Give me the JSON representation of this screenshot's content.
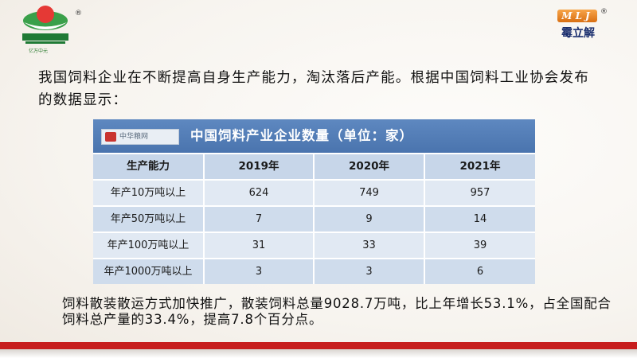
{
  "brand_left": {
    "caption": "亿万中元",
    "registered": "®"
  },
  "brand_right": {
    "badge": "MLJ",
    "registered": "®",
    "name": "霉立解"
  },
  "intro_text": "我国饲料企业在不断提高自身生产能力，淘汰落后产能。根据中国饲料工业协会发布的数据显示：",
  "table": {
    "source_logo": "中华粮网",
    "title": "中国饲料产业企业数量（单位：家）",
    "headers": [
      "生产能力",
      "2019年",
      "2020年",
      "2021年"
    ],
    "rows": [
      [
        "年产10万吨以上",
        "624",
        "749",
        "957"
      ],
      [
        "年产50万吨以上",
        "7",
        "9",
        "14"
      ],
      [
        "年产100万吨以上",
        "31",
        "33",
        "39"
      ],
      [
        "年产1000万吨以上",
        "3",
        "3",
        "6"
      ]
    ]
  },
  "summary_text": "饲料散装散运方式加快推广，散装饲料总量9028.7万吨，比上年增长53.1%，占全国配合饲料总产量的33.4%，提高7.8个百分点。",
  "colors": {
    "accent_red": "#c71e1e",
    "table_header": "#4a74ae",
    "brand_green": "#2e7d32"
  }
}
